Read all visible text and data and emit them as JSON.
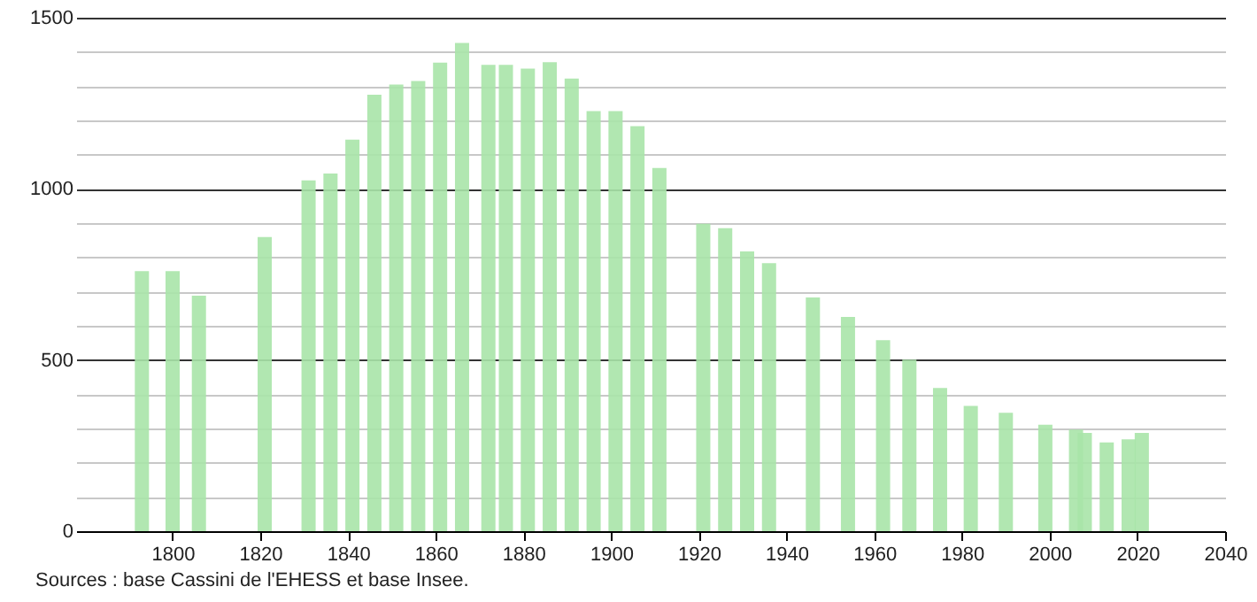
{
  "chart_data": {
    "type": "bar",
    "x": [
      1793,
      1800,
      1806,
      1821,
      1831,
      1836,
      1841,
      1846,
      1851,
      1856,
      1861,
      1866,
      1872,
      1876,
      1881,
      1886,
      1891,
      1896,
      1901,
      1906,
      1911,
      1921,
      1926,
      1931,
      1936,
      1946,
      1954,
      1962,
      1968,
      1975,
      1982,
      1990,
      1999,
      2006,
      2008,
      2013,
      2018,
      2021
    ],
    "values": [
      760,
      760,
      688,
      859,
      1025,
      1045,
      1144,
      1275,
      1305,
      1315,
      1369,
      1426,
      1362,
      1362,
      1351,
      1370,
      1322,
      1227,
      1227,
      1183,
      1061,
      898,
      885,
      817,
      783,
      683,
      626,
      558,
      501,
      418,
      366,
      346,
      311,
      297,
      287,
      259,
      268,
      287
    ],
    "color": "#a8e4a8",
    "xlim": [
      1778,
      2040
    ],
    "xticks": [
      1800,
      1820,
      1840,
      1860,
      1880,
      1900,
      1920,
      1940,
      1960,
      1980,
      2000,
      2020,
      2040
    ],
    "ylim": [
      0,
      1500
    ],
    "yticks": [
      0,
      {
        "value": 100,
        "label": null
      },
      {
        "value": 200,
        "label": null
      },
      {
        "value": 300,
        "label": null
      },
      {
        "value": 400,
        "label": null
      },
      500,
      {
        "value": 600,
        "label": null
      },
      {
        "value": 700,
        "label": null
      },
      {
        "value": 800,
        "label": null
      },
      {
        "value": 900,
        "label": null
      },
      1000,
      {
        "value": 1100,
        "label": null
      },
      {
        "value": 1200,
        "label": null
      },
      {
        "value": 1300,
        "label": null
      },
      {
        "value": 1400,
        "label": null
      },
      1500
    ],
    "grid": "y",
    "annotations": [
      "Sources : base Cassini de l'EHESS et base Insee."
    ]
  }
}
